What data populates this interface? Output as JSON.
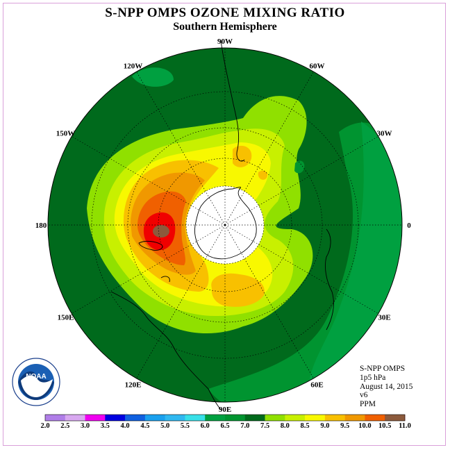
{
  "title": "S-NPP OMPS OZONE MIXING RATIO",
  "subtitle": "Southern Hemisphere",
  "logo_text": "NOAA",
  "info": {
    "instrument": "S-NPP OMPS",
    "level": "1p5 hPa",
    "date": "August 14, 2015",
    "version": "v6",
    "units": "PPM"
  },
  "longitude_labels": [
    {
      "text": "0",
      "lon": 0
    },
    {
      "text": "30E",
      "lon": 30
    },
    {
      "text": "60E",
      "lon": 60
    },
    {
      "text": "90E",
      "lon": 90
    },
    {
      "text": "120E",
      "lon": 120
    },
    {
      "text": "150E",
      "lon": 150
    },
    {
      "text": "180",
      "lon": 180
    },
    {
      "text": "150W",
      "lon": -150
    },
    {
      "text": "120W",
      "lon": -120
    },
    {
      "text": "90W",
      "lon": -90
    },
    {
      "text": "60W",
      "lon": -60
    },
    {
      "text": "30W",
      "lon": -30
    }
  ],
  "colorbar": {
    "levels": [
      "2.0",
      "2.5",
      "3.0",
      "3.5",
      "4.0",
      "4.5",
      "5.0",
      "5.5",
      "6.0",
      "6.5",
      "7.0",
      "7.5",
      "8.0",
      "8.5",
      "9.0",
      "9.5",
      "10.0",
      "10.5",
      "11.0"
    ],
    "colors": [
      "#b07ee8",
      "#d8a8f0",
      "#f000f0",
      "#0000e0",
      "#1060e0",
      "#1aa0ee",
      "#30b8f0",
      "#38e0e8",
      "#00a040",
      "#009430",
      "#006a1c",
      "#90e000",
      "#c8f000",
      "#f8f800",
      "#f8c000",
      "#f09800",
      "#f06000",
      "#f00000",
      "#8c5a3c"
    ]
  },
  "map_colors": {
    "band_6_0": "#00a040",
    "band_6_5": "#009430",
    "band_7_0": "#006a1c",
    "band_7_5": "#90e000",
    "band_8_0": "#c8f000",
    "band_8_5": "#f8f800",
    "band_9_0": "#f8c000",
    "band_9_5": "#f09800",
    "band_10_0": "#f06000",
    "band_10_5": "#f00000",
    "band_11_0": "#8c5a3c",
    "no_data": "#ffffff"
  }
}
